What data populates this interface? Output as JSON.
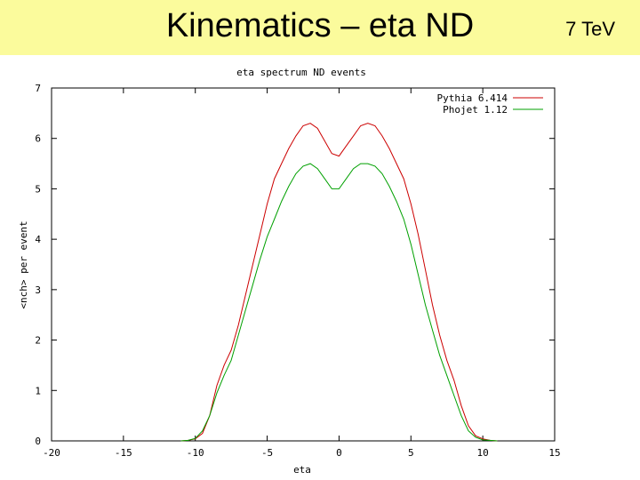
{
  "slide": {
    "title": "Kinematics – eta ND",
    "corner_label": "7 TeV"
  },
  "colors": {
    "title_bar": "#fbfb9c",
    "pythia": "#cc0000",
    "phojet": "#00a000"
  },
  "chart_data": {
    "type": "line",
    "title": "eta spectrum ND events",
    "xlabel": "eta",
    "ylabel": "<nch> per event",
    "xlim": [
      -20,
      15
    ],
    "ylim": [
      0,
      7
    ],
    "xticks": [
      -20,
      -15,
      -10,
      -5,
      0,
      5,
      10,
      15
    ],
    "yticks": [
      0,
      1,
      2,
      3,
      4,
      5,
      6,
      7
    ],
    "xtick_labels": [
      "-20",
      "-15",
      "-10",
      "-5",
      "0",
      "5",
      "10",
      "15"
    ],
    "ytick_labels": [
      "0",
      "1",
      "2",
      "3",
      "4",
      "5",
      "6",
      "7"
    ],
    "legend_position": "top-right",
    "grid": false,
    "series": [
      {
        "name": "Pythia 6.414",
        "color": "#cc0000",
        "x": [
          -11,
          -10.5,
          -10,
          -9.5,
          -9,
          -8.5,
          -8,
          -7.5,
          -7,
          -6.5,
          -6,
          -5.5,
          -5,
          -4.5,
          -4,
          -3.5,
          -3,
          -2.5,
          -2,
          -1.5,
          -1,
          -0.5,
          0,
          0.5,
          1,
          1.5,
          2,
          2.5,
          3,
          3.5,
          4,
          4.5,
          5,
          5.5,
          6,
          6.5,
          7,
          7.5,
          8,
          8.5,
          9,
          9.5,
          10,
          10.5,
          11
        ],
        "y": [
          0,
          0.01,
          0.04,
          0.15,
          0.5,
          1.1,
          1.5,
          1.8,
          2.3,
          2.9,
          3.5,
          4.1,
          4.7,
          5.2,
          5.5,
          5.8,
          6.05,
          6.25,
          6.3,
          6.2,
          5.95,
          5.7,
          5.65,
          5.85,
          6.05,
          6.25,
          6.3,
          6.25,
          6.05,
          5.8,
          5.5,
          5.2,
          4.7,
          4.1,
          3.4,
          2.7,
          2.1,
          1.6,
          1.2,
          0.7,
          0.3,
          0.1,
          0.04,
          0.01,
          0
        ]
      },
      {
        "name": "Phojet 1.12",
        "color": "#00a000",
        "x": [
          -11,
          -10.5,
          -10,
          -9.5,
          -9,
          -8.5,
          -8,
          -7.5,
          -7,
          -6.5,
          -6,
          -5.5,
          -5,
          -4.5,
          -4,
          -3.5,
          -3,
          -2.5,
          -2,
          -1.5,
          -1,
          -0.5,
          0,
          0.5,
          1,
          1.5,
          2,
          2.5,
          3,
          3.5,
          4,
          4.5,
          5,
          5.5,
          6,
          6.5,
          7,
          7.5,
          8,
          8.5,
          9,
          9.5,
          10,
          10.5,
          11
        ],
        "y": [
          0,
          0.01,
          0.05,
          0.2,
          0.5,
          0.95,
          1.3,
          1.6,
          2.1,
          2.6,
          3.1,
          3.6,
          4.05,
          4.4,
          4.75,
          5.05,
          5.3,
          5.45,
          5.5,
          5.4,
          5.2,
          5.0,
          5.0,
          5.2,
          5.4,
          5.5,
          5.5,
          5.45,
          5.3,
          5.05,
          4.75,
          4.4,
          3.9,
          3.3,
          2.7,
          2.2,
          1.7,
          1.3,
          0.9,
          0.5,
          0.2,
          0.07,
          0.02,
          0.01,
          0
        ]
      }
    ]
  }
}
